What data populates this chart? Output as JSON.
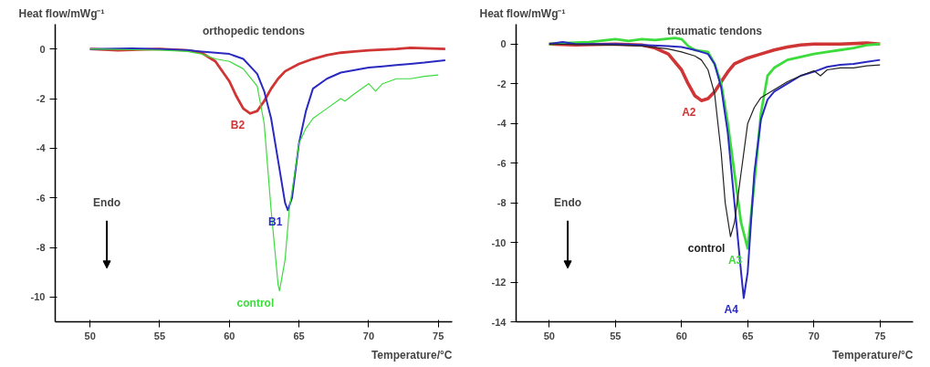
{
  "chart_data": [
    {
      "type": "line",
      "title": "orthopedic tendons",
      "xlabel": "Temperature/°C",
      "ylabel": "Heat flow/mWg⁻¹",
      "xlim": [
        47.5,
        76
      ],
      "ylim": [
        -11,
        1
      ],
      "xticks": [
        50,
        55,
        60,
        65,
        70,
        75
      ],
      "yticks": [
        0,
        -2,
        -4,
        -6,
        -8,
        -10
      ],
      "grid": false,
      "legend": false,
      "annotations": [
        "Endo"
      ],
      "series": [
        {
          "name": "B2",
          "color": "#d03535",
          "x": [
            50,
            52,
            55,
            57,
            58,
            59,
            60,
            60.5,
            61,
            61.5,
            62,
            62.5,
            63,
            63.5,
            64,
            65,
            66,
            67,
            68,
            69,
            70,
            72,
            73,
            75.5
          ],
          "values": [
            0,
            -0.05,
            0,
            -0.05,
            -0.15,
            -0.5,
            -1.3,
            -1.9,
            -2.4,
            -2.6,
            -2.5,
            -2.1,
            -1.6,
            -1.2,
            -0.9,
            -0.6,
            -0.4,
            -0.25,
            -0.15,
            -0.1,
            -0.05,
            0,
            0.05,
            0
          ]
        },
        {
          "name": "B1",
          "color": "#2a2ac0",
          "x": [
            50,
            53,
            55,
            57,
            58,
            59,
            60,
            61,
            62,
            62.5,
            63,
            63.5,
            64,
            64.2,
            64.5,
            65,
            65.5,
            66,
            67,
            68,
            69,
            70,
            71,
            72,
            73,
            74,
            75.5
          ],
          "values": [
            0,
            0.02,
            0,
            -0.05,
            -0.1,
            -0.15,
            -0.2,
            -0.4,
            -1.0,
            -1.7,
            -2.8,
            -4.5,
            -6.2,
            -6.5,
            -6.0,
            -3.8,
            -2.5,
            -1.6,
            -1.2,
            -0.95,
            -0.85,
            -0.75,
            -0.7,
            -0.65,
            -0.6,
            -0.55,
            -0.45
          ]
        },
        {
          "name": "control",
          "color": "#3ddc3d",
          "x": [
            50,
            55,
            57,
            58,
            59,
            60,
            61,
            62,
            62.5,
            63,
            63.5,
            63.6,
            64,
            64.3,
            65,
            65.5,
            66,
            67,
            68,
            68.3,
            69,
            70,
            70.5,
            71,
            72,
            73,
            74,
            75
          ],
          "values": [
            0,
            -0.05,
            -0.1,
            -0.2,
            -0.4,
            -0.5,
            -0.8,
            -1.5,
            -3.0,
            -6.5,
            -9.5,
            -9.75,
            -8.5,
            -6.5,
            -3.8,
            -3.2,
            -2.8,
            -2.4,
            -2.0,
            -2.1,
            -1.8,
            -1.4,
            -1.7,
            -1.4,
            -1.2,
            -1.2,
            -1.1,
            -1.05
          ]
        }
      ]
    },
    {
      "type": "line",
      "title": "traumatic tendons",
      "xlabel": "Temperature/°C",
      "ylabel": "Heat flow/mWg⁻¹",
      "xlim": [
        47.5,
        77.5
      ],
      "ylim": [
        -14,
        1
      ],
      "xticks": [
        50,
        55,
        60,
        65,
        70,
        75
      ],
      "yticks": [
        0,
        -2,
        -4,
        -6,
        -8,
        -10,
        -12,
        -14
      ],
      "grid": false,
      "legend": false,
      "annotations": [
        "Endo"
      ],
      "series": [
        {
          "name": "A2",
          "color": "#d03535",
          "x": [
            50,
            52,
            55,
            57,
            58,
            59,
            60,
            60.5,
            61,
            61.5,
            62,
            62.5,
            63,
            63.5,
            64,
            65,
            66,
            67,
            68,
            69,
            70,
            72,
            74,
            75
          ],
          "values": [
            0,
            -0.05,
            0,
            -0.05,
            -0.2,
            -0.5,
            -1.3,
            -2.0,
            -2.6,
            -2.85,
            -2.75,
            -2.4,
            -1.9,
            -1.4,
            -1.0,
            -0.7,
            -0.5,
            -0.3,
            -0.15,
            -0.05,
            0,
            0,
            0.05,
            0
          ]
        },
        {
          "name": "A3",
          "color": "#3ddc3d",
          "x": [
            50,
            51,
            53,
            55,
            56,
            57,
            58,
            59.5,
            60,
            60.5,
            61,
            62,
            62.5,
            63,
            63.5,
            64,
            64.5,
            65,
            65.5,
            66,
            66.5,
            67,
            68,
            69,
            70,
            71,
            72,
            73,
            74,
            75
          ],
          "values": [
            0,
            0.05,
            0.1,
            0.25,
            0.15,
            0.25,
            0.2,
            0.3,
            0.25,
            -0.1,
            -0.3,
            -0.4,
            -1.0,
            -2.0,
            -4.0,
            -6.5,
            -9.0,
            -10.3,
            -7.0,
            -3.5,
            -1.6,
            -1.2,
            -0.8,
            -0.65,
            -0.5,
            -0.4,
            -0.3,
            -0.2,
            -0.05,
            0
          ]
        },
        {
          "name": "A4",
          "color": "#2a2ac0",
          "x": [
            50,
            51,
            52,
            55,
            57,
            59,
            60,
            61,
            62,
            62.5,
            63,
            63.5,
            64,
            64.5,
            64.7,
            65,
            65.5,
            66,
            66.5,
            67,
            68,
            69,
            70,
            71,
            72,
            73,
            74,
            75
          ],
          "values": [
            0,
            0.1,
            0,
            0,
            -0.05,
            -0.1,
            -0.15,
            -0.3,
            -0.5,
            -1.0,
            -2.2,
            -4.5,
            -8.0,
            -11.5,
            -12.8,
            -11.5,
            -6.5,
            -3.8,
            -2.8,
            -2.4,
            -2.0,
            -1.6,
            -1.4,
            -1.15,
            -1.05,
            -1.0,
            -0.9,
            -0.8
          ]
        },
        {
          "name": "control",
          "color": "#222222",
          "x": [
            50,
            55,
            57,
            59,
            60,
            61,
            61.5,
            62,
            62.5,
            63,
            63.3,
            63.7,
            64,
            64.5,
            65,
            65.5,
            66,
            67,
            68,
            69,
            70,
            70.5,
            71,
            72,
            73,
            74,
            75
          ],
          "values": [
            0,
            -0.05,
            -0.1,
            -0.25,
            -0.4,
            -0.6,
            -0.8,
            -1.3,
            -2.5,
            -5.5,
            -8.0,
            -9.7,
            -9.0,
            -6.5,
            -4.0,
            -3.2,
            -2.7,
            -2.3,
            -1.9,
            -1.6,
            -1.35,
            -1.6,
            -1.3,
            -1.2,
            -1.2,
            -1.1,
            -1.05
          ]
        }
      ]
    }
  ]
}
